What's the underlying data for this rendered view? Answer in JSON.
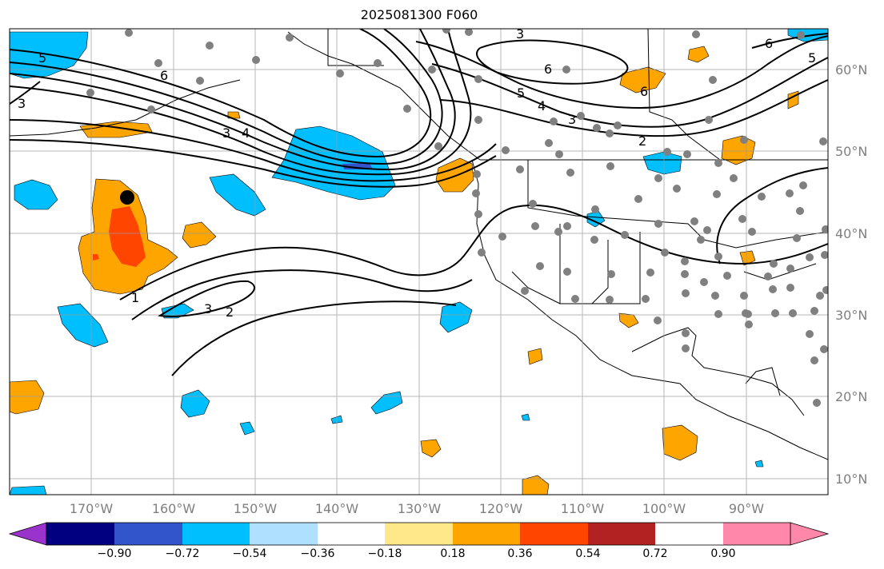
{
  "title": "2025081300 F060",
  "lon_labels": [
    "170°W",
    "160°W",
    "150°W",
    "140°W",
    "130°W",
    "120°W",
    "110°W",
    "100°W",
    "90°W"
  ],
  "lat_labels": [
    "60°N",
    "50°N",
    "40°N",
    "30°N",
    "20°N",
    "10°N"
  ],
  "colorbar": {
    "colors": [
      "#9933cc",
      "#000080",
      "#3355cc",
      "#00bfff",
      "#b0e0ff",
      "#ffffff",
      "#ffe88a",
      "#ffa500",
      "#ff4500",
      "#b22222",
      "#ff88aa"
    ],
    "ticks": [
      "−0.90",
      "−0.72",
      "−0.54",
      "−0.36",
      "−0.18",
      "0.18",
      "0.36",
      "0.54",
      "0.72",
      "0.90"
    ]
  },
  "contour_labels": [
    "5",
    "6",
    "3",
    "4",
    "3",
    "2",
    "5",
    "4",
    "3",
    "6",
    "6",
    "3",
    "1",
    "3",
    "2",
    "6",
    "5"
  ],
  "marker": "black-dot"
}
